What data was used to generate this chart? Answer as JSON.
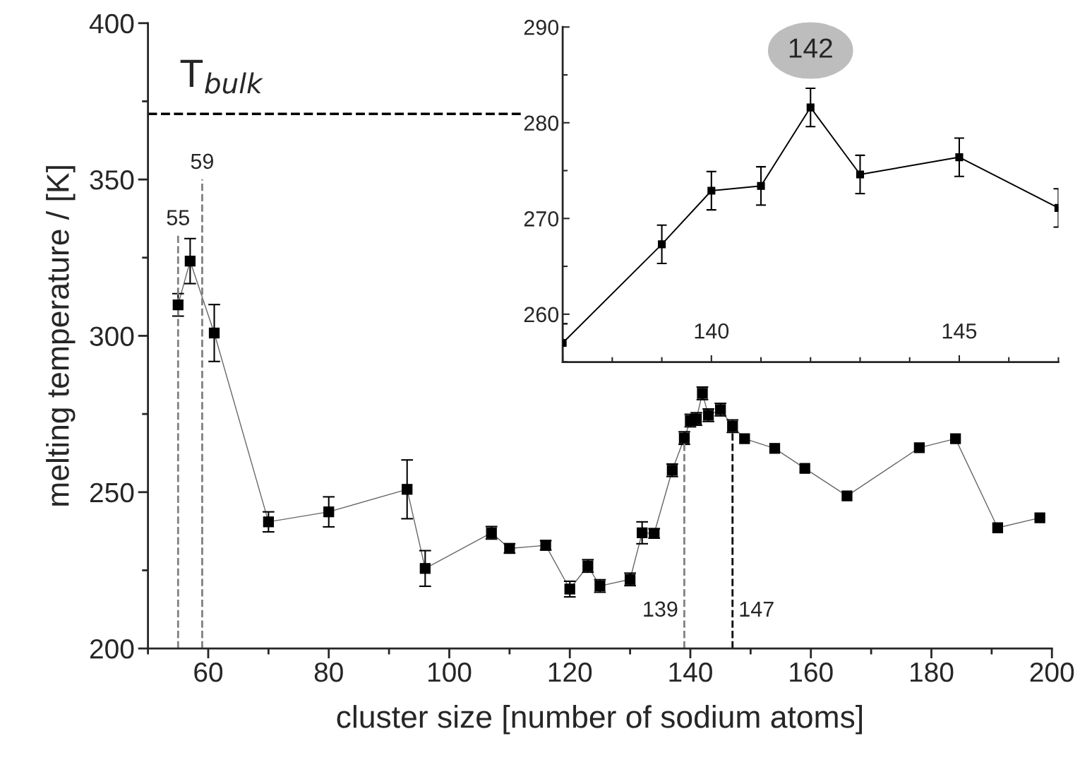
{
  "chart_data": [
    {
      "type": "line",
      "xlabel": "cluster size [number of sodium atoms]",
      "ylabel": "melting temperature / [K]",
      "x": [
        55,
        57,
        61,
        70,
        80,
        93,
        96,
        107,
        110,
        116,
        120,
        123,
        125,
        130,
        132,
        134,
        137,
        139,
        140,
        141,
        142,
        143,
        145,
        147,
        149,
        154,
        159,
        166,
        178,
        184,
        191,
        198
      ],
      "series": [
        {
          "color": "#000000",
          "values": [
            309.9,
            323.9,
            300.9,
            240.5,
            243.7,
            250.9,
            225.6,
            237,
            232,
            233,
            219,
            226.4,
            220,
            222.1,
            237,
            236.8,
            257.0,
            267.3,
            272.9,
            273.4,
            281.6,
            274.6,
            276.4,
            271.1,
            267.1,
            264,
            257.6,
            248.8,
            264.2,
            267.1,
            238.6,
            241.8
          ],
          "errors": [
            3.6,
            7.2,
            9.1,
            3.2,
            4.8,
            9.4,
            5.7,
            2,
            1.5,
            1.5,
            2.5,
            2,
            2,
            2,
            3.5,
            1.5,
            2,
            2,
            2,
            2,
            2,
            2,
            2,
            2,
            null,
            null,
            null,
            null,
            null,
            null,
            null,
            null
          ]
        }
      ],
      "xlim": [
        50,
        200
      ],
      "xticks": [
        60,
        80,
        100,
        120,
        140,
        160,
        180,
        200
      ],
      "ylim": [
        200,
        400
      ],
      "yticks": [
        200,
        250,
        300,
        350,
        400
      ],
      "marker": "square",
      "line_style": "solid",
      "grid": false,
      "ref_lines": [
        {
          "axis": "x",
          "value": 55,
          "label": "55",
          "color": "#808080",
          "line_style": "dashed"
        },
        {
          "axis": "x",
          "value": 59,
          "label": "59",
          "color": "#808080",
          "line_style": "dashed"
        },
        {
          "axis": "x",
          "value": 139,
          "label": "139",
          "color": "#808080",
          "line_style": "dashed"
        },
        {
          "axis": "x",
          "value": 147,
          "label": "147",
          "color": "#000000",
          "line_style": "dashed"
        },
        {
          "axis": "y",
          "value": 371,
          "label": "T$_{bulk}$",
          "color": "#000000",
          "line_style": "dashed"
        }
      ]
    },
    {
      "type": "line",
      "x": [
        137,
        139,
        140,
        141,
        142,
        143,
        145,
        147
      ],
      "series": [
        {
          "color": "#000000",
          "values": [
            257.0,
            267.3,
            272.9,
            273.4,
            281.6,
            274.6,
            276.4,
            271.1
          ],
          "errors": [
            2,
            2,
            2,
            2,
            2,
            2,
            2,
            2
          ]
        }
      ],
      "xlim": [
        137,
        147
      ],
      "xticks": [
        140,
        145
      ],
      "ylim": [
        255,
        290
      ],
      "yticks": [
        260,
        270,
        280,
        290
      ],
      "marker": "square",
      "line_style": "solid",
      "grid": false,
      "annotations": [
        {
          "text": "142",
          "x": 142,
          "y": 281.6
        }
      ]
    }
  ]
}
